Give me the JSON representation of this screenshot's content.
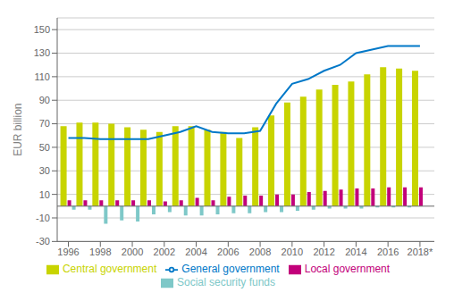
{
  "chart_data": {
    "type": "bar",
    "ylabel": "EUR billion",
    "x": [
      1996,
      1997,
      1998,
      1999,
      2000,
      2001,
      2002,
      2003,
      2004,
      2005,
      2006,
      2007,
      2008,
      2009,
      2010,
      2011,
      2012,
      2013,
      2014,
      2015,
      2016,
      2017,
      2018
    ],
    "xlim": [
      1995.3,
      2018.9
    ],
    "xticks": [
      1996,
      1998,
      2000,
      2002,
      2004,
      2006,
      2008,
      2010,
      2012,
      2014,
      2016,
      {
        "value": 2018,
        "label": "2018*"
      }
    ],
    "ylim": [
      -30,
      160
    ],
    "yticks": [
      -30,
      -10,
      10,
      30,
      50,
      70,
      90,
      110,
      130,
      150
    ],
    "grid": true,
    "legend": "bottom",
    "series": [
      {
        "name": "Central government",
        "type": "bar",
        "color": "#c8d400",
        "values": [
          68,
          71,
          71,
          70,
          67,
          65,
          63,
          68,
          68,
          65,
          63,
          58,
          67,
          77,
          88,
          93,
          99,
          103,
          106,
          112,
          118,
          117,
          115
        ]
      },
      {
        "name": "Local government",
        "type": "bar",
        "color": "#c2007a",
        "values": [
          5,
          5,
          5,
          5,
          5,
          5,
          4,
          5,
          7,
          5,
          8,
          9,
          9,
          10,
          10,
          12,
          13,
          14,
          15,
          15,
          16,
          16,
          16
        ]
      },
      {
        "name": "Social security funds",
        "type": "bar",
        "color": "#7ec8c8",
        "values": [
          -3,
          -3,
          -15,
          -12,
          -13,
          -7,
          -5,
          -8,
          -8,
          -7,
          -6,
          -6,
          -5,
          -5,
          -4,
          -3,
          -2,
          -2,
          -2,
          -1,
          -1,
          -1,
          0
        ]
      },
      {
        "name": "General government",
        "type": "line",
        "color": "#0078c8",
        "values": [
          58,
          58,
          57,
          57,
          57,
          57,
          60,
          63,
          68,
          63,
          62,
          62,
          64,
          87,
          104,
          108,
          115,
          120,
          130,
          133,
          136,
          136,
          136
        ]
      }
    ]
  }
}
